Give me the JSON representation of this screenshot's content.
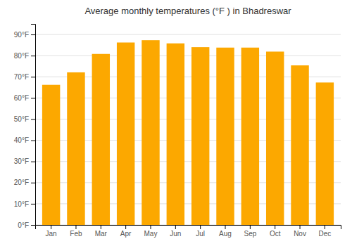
{
  "chart_data": {
    "type": "bar",
    "title": "Average monthly temperatures (°F ) in Bhadreswar",
    "categories": [
      "Jan",
      "Feb",
      "Mar",
      "Apr",
      "May",
      "Jun",
      "Jul",
      "Aug",
      "Sep",
      "Oct",
      "Nov",
      "Dec"
    ],
    "values": [
      66.2,
      72.1,
      80.8,
      86.2,
      87.3,
      85.8,
      84.0,
      83.8,
      83.8,
      81.9,
      75.4,
      67.3
    ],
    "color": "#FCA800",
    "ylim": [
      0,
      95
    ],
    "yticks": [
      {
        "value": 0,
        "label": "0°F"
      },
      {
        "value": 10,
        "label": "10°F"
      },
      {
        "value": 20,
        "label": "20°F"
      },
      {
        "value": 30,
        "label": "30°F"
      },
      {
        "value": 40,
        "label": "40°F"
      },
      {
        "value": 50,
        "label": "50°F"
      },
      {
        "value": 60,
        "label": "60°F"
      },
      {
        "value": 70,
        "label": "70°F"
      },
      {
        "value": 80,
        "label": "80°F"
      },
      {
        "value": 90,
        "label": "90°F"
      }
    ],
    "grid": true
  }
}
